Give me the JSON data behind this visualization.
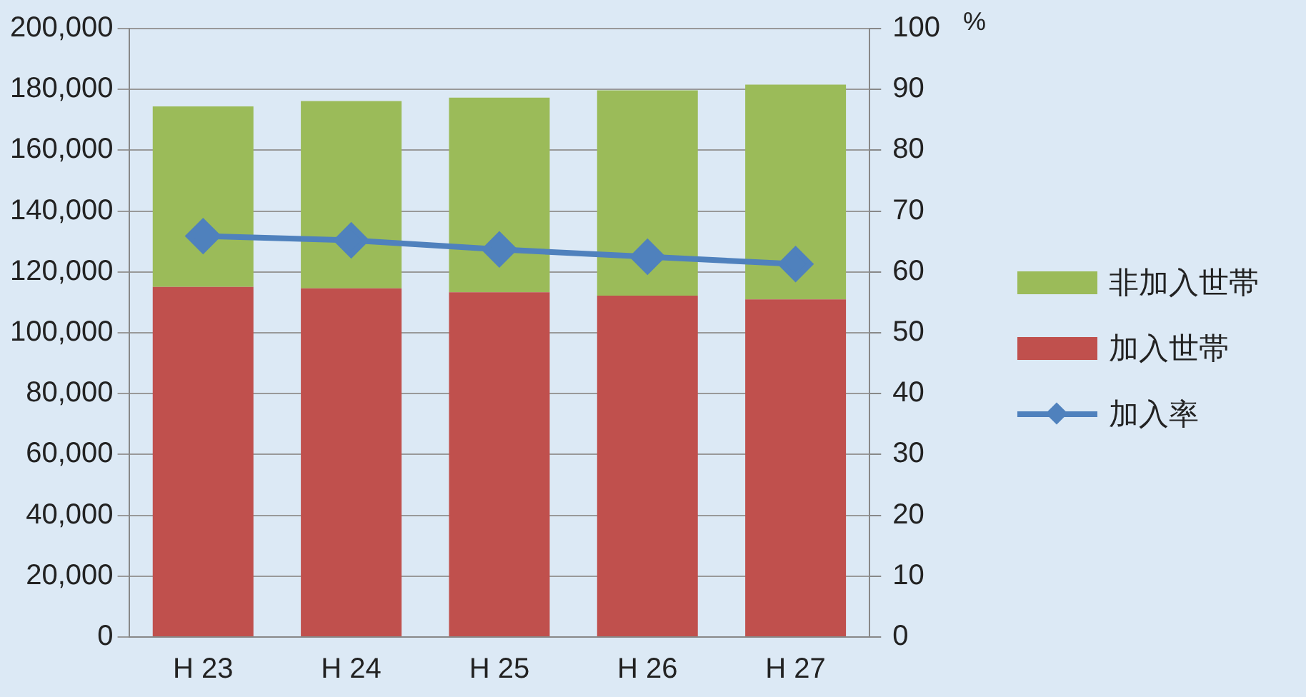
{
  "chart_data": {
    "type": "bar",
    "stacked": true,
    "categories": [
      "H 23",
      "H 24",
      "H 25",
      "H 26",
      "H 27"
    ],
    "series": [
      {
        "name": "加入世帯",
        "color": "#c0504d",
        "values": [
          115100,
          114600,
          113300,
          112200,
          111000
        ]
      },
      {
        "name": "非加入世帯",
        "color": "#9bbb59",
        "values": [
          59300,
          61600,
          64000,
          67500,
          70600
        ]
      },
      {
        "name": "加入率",
        "type": "line",
        "axis": "y2",
        "color": "#4f81bd",
        "values": [
          65.9,
          65.2,
          63.7,
          62.5,
          61.3
        ]
      }
    ],
    "ylim": [
      0,
      200000
    ],
    "yticks": [
      0,
      {
        "value": 20000,
        "label": "20,000"
      },
      {
        "value": 40000,
        "label": "40,000"
      },
      {
        "value": 60000,
        "label": "60,000"
      },
      {
        "value": 80000,
        "label": "80,000"
      },
      {
        "value": 100000,
        "label": "100,000"
      },
      {
        "value": 120000,
        "label": "120,000"
      },
      {
        "value": 140000,
        "label": "140,000"
      },
      {
        "value": 160000,
        "label": "160,000"
      },
      {
        "value": 180000,
        "label": "180,000"
      },
      {
        "value": 200000,
        "label": "200,000"
      }
    ],
    "y2lim": [
      0,
      100
    ],
    "y2ticks": [
      0,
      10,
      20,
      30,
      40,
      50,
      60,
      70,
      80,
      90,
      100
    ],
    "y2label": "%",
    "grid": "y",
    "legend": "right",
    "marker": "diamond"
  }
}
